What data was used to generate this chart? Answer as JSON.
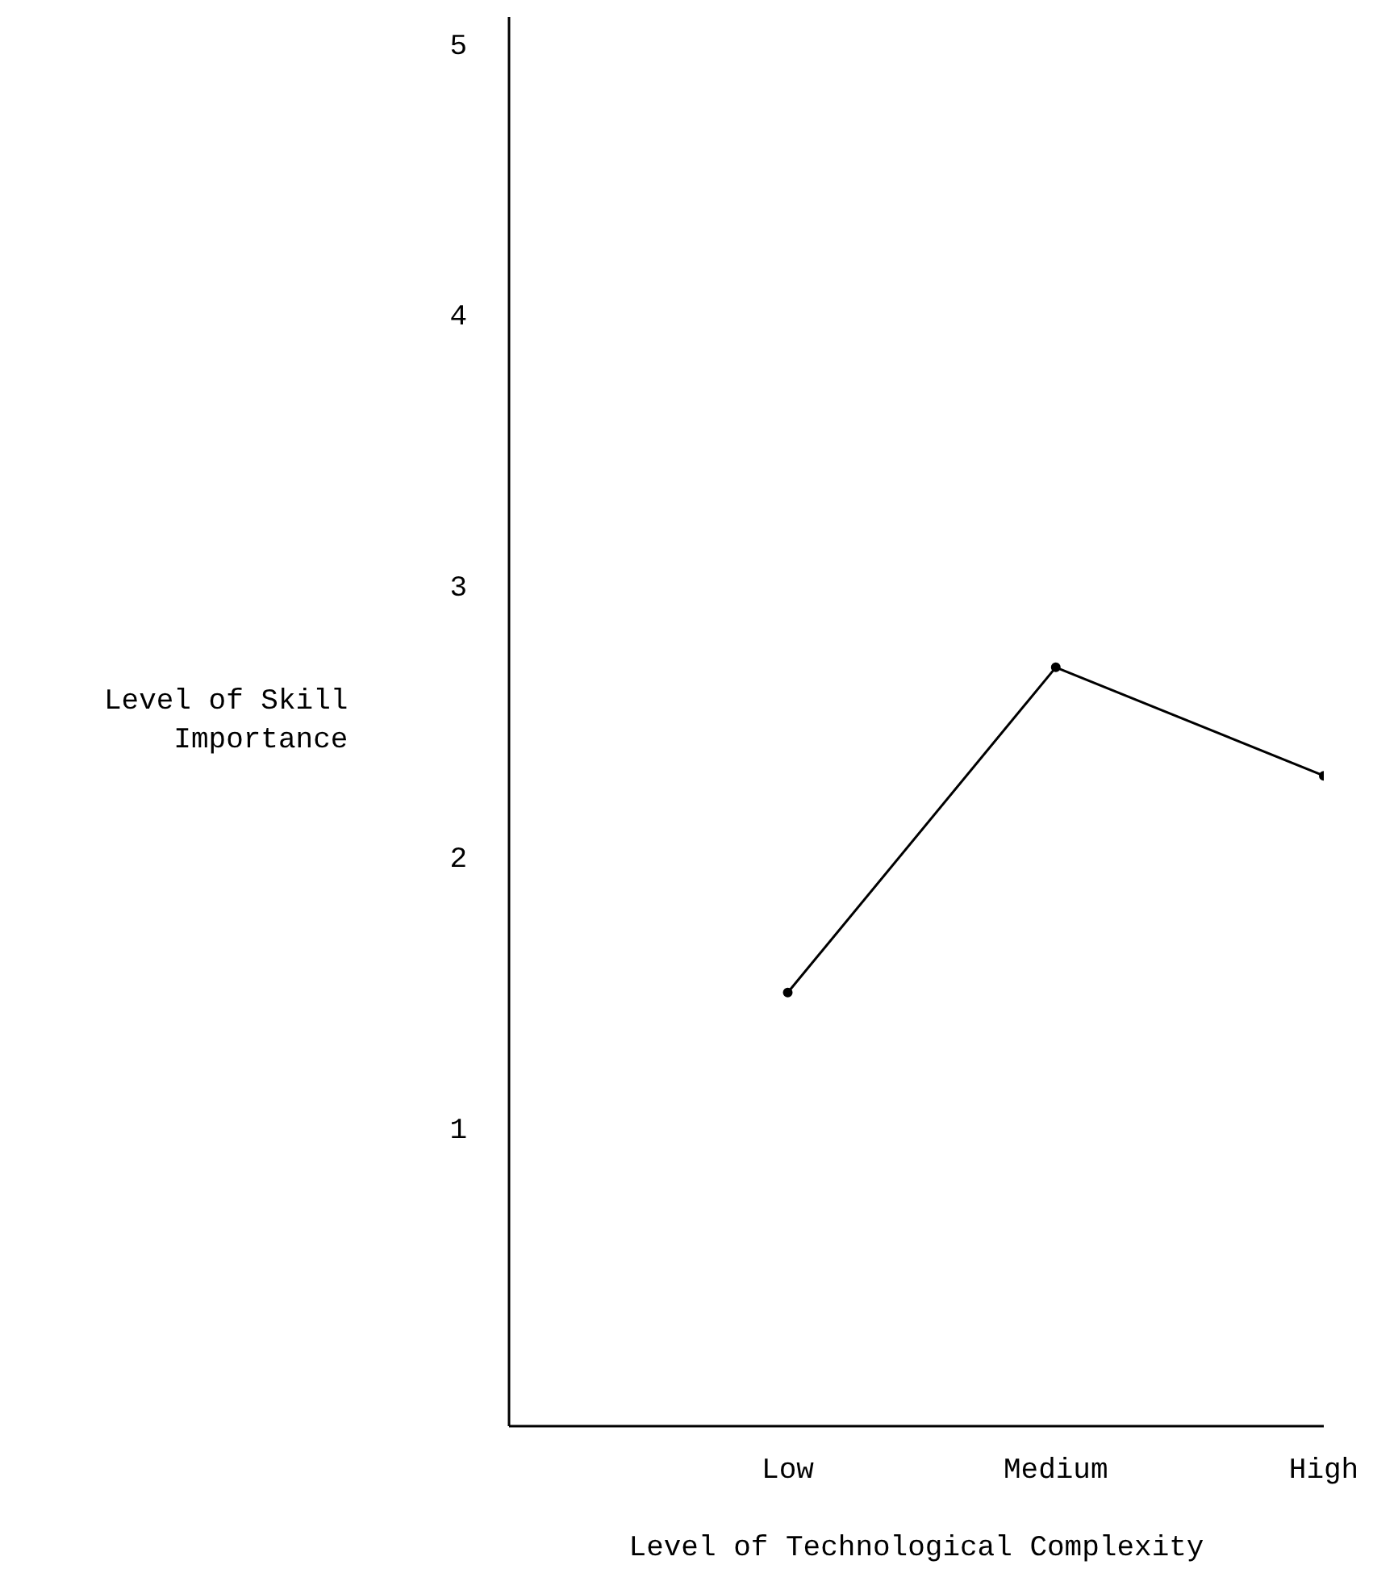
{
  "chart_data": {
    "type": "line",
    "xlabel": "Level of Technological Complexity",
    "ylabel": "Level of Skill Importance",
    "categories": [
      "Low",
      "Medium",
      "High"
    ],
    "values": [
      1.5,
      2.7,
      2.3
    ],
    "color": "#000000",
    "marker": "circle",
    "line_style": "solid",
    "ylim": [
      -0.1,
      5.1
    ],
    "yticks": [
      1,
      2,
      3,
      4,
      5
    ],
    "grid": false
  }
}
